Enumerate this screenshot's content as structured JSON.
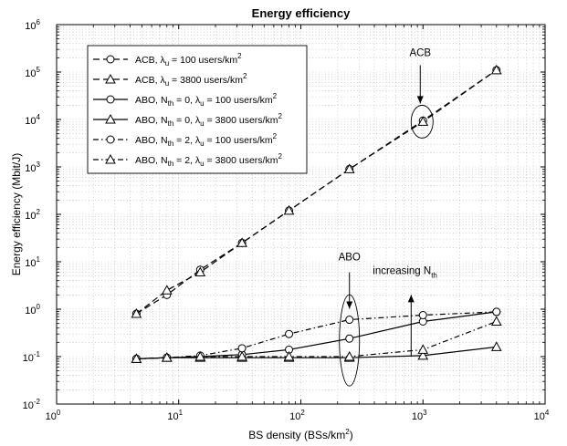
{
  "chart_data": {
    "type": "line",
    "title": "Energy efficiency",
    "xlabel": "BS density (BSs/km",
    "xlabel_sup": "2",
    "xlabel_end": ")",
    "ylabel": "Energy efficiency (Mbit/J)",
    "xscale": "log",
    "yscale": "log",
    "xlim": [
      1,
      10000
    ],
    "ylim": [
      0.01,
      1000000
    ],
    "grid": true,
    "legend_position": "top-left",
    "x_ticks": [
      1,
      10,
      100,
      1000,
      10000
    ],
    "x_tick_labels": [
      {
        "base": "10",
        "exp": "0"
      },
      {
        "base": "10",
        "exp": "1"
      },
      {
        "base": "10",
        "exp": "2"
      },
      {
        "base": "10",
        "exp": "3"
      },
      {
        "base": "10",
        "exp": "4"
      }
    ],
    "y_ticks": [
      0.01,
      0.1,
      1,
      10,
      100,
      1000,
      10000,
      100000,
      1000000
    ],
    "y_tick_labels": [
      {
        "base": "10",
        "exp": "-2"
      },
      {
        "base": "10",
        "exp": "-1"
      },
      {
        "base": "10",
        "exp": "0"
      },
      {
        "base": "10",
        "exp": "1"
      },
      {
        "base": "10",
        "exp": "2"
      },
      {
        "base": "10",
        "exp": "3"
      },
      {
        "base": "10",
        "exp": "4"
      },
      {
        "base": "10",
        "exp": "5"
      },
      {
        "base": "10",
        "exp": "6"
      }
    ],
    "series": [
      {
        "label": "ACB, λu = 100 users/km2",
        "legend": {
          "pre": "ACB, ",
          "sym": "λ",
          "sub": "u",
          "mid": " = 100 users/km",
          "sup": "2"
        },
        "marker": "circle",
        "dash": "long",
        "color": "#000000",
        "x": [
          4.5,
          8,
          15,
          33,
          80,
          250,
          1000,
          4000
        ],
        "y": [
          0.8,
          2,
          6.8,
          25,
          120,
          900,
          9500,
          110000
        ]
      },
      {
        "label": "ACB, λu = 3800 users/km2",
        "legend": {
          "pre": "ACB, ",
          "sym": "λ",
          "sub": "u",
          "mid": " = 3800 users/km",
          "sup": "2"
        },
        "marker": "triangle",
        "dash": "long",
        "color": "#000000",
        "x": [
          4.5,
          8,
          15,
          33,
          80,
          250,
          1000,
          4000
        ],
        "y": [
          0.8,
          2.5,
          6,
          25,
          120,
          900,
          9000,
          110000
        ]
      },
      {
        "label": "ABO, Nth = 0, λu = 100 users/km2",
        "legend": {
          "pre": "ABO, N",
          "sub0": "th",
          "pre2": " = 0, ",
          "sym": "λ",
          "sub": "u",
          "mid": " = 100 users/km",
          "sup": "2"
        },
        "marker": "circle",
        "dash": "solid",
        "color": "#000000",
        "x": [
          4.5,
          8,
          15,
          33,
          80,
          250,
          1000,
          4000
        ],
        "y": [
          0.09,
          0.095,
          0.1,
          0.11,
          0.14,
          0.24,
          0.55,
          0.88
        ]
      },
      {
        "label": "ABO, Nth = 0, λu = 3800 users/km2",
        "legend": {
          "pre": "ABO, N",
          "sub0": "th",
          "pre2": " = 0, ",
          "sym": "λ",
          "sub": "u",
          "mid": " = 3800 users/km",
          "sup": "2"
        },
        "marker": "triangle",
        "dash": "solid",
        "color": "#000000",
        "x": [
          4.5,
          8,
          15,
          33,
          80,
          250,
          1000,
          4000
        ],
        "y": [
          0.09,
          0.095,
          0.095,
          0.095,
          0.095,
          0.095,
          0.105,
          0.16
        ]
      },
      {
        "label": "ABO, Nth = 2, λu = 100 users/km2",
        "legend": {
          "pre": "ABO, N",
          "sub0": "th",
          "pre2": " = 2, ",
          "sym": "λ",
          "sub": "u",
          "mid": " = 100 users/km",
          "sup": "2"
        },
        "marker": "circle",
        "dash": "dashdot",
        "color": "#000000",
        "x": [
          4.5,
          8,
          15,
          33,
          80,
          250,
          1000,
          4000
        ],
        "y": [
          0.09,
          0.095,
          0.105,
          0.15,
          0.3,
          0.6,
          0.75,
          0.88
        ]
      },
      {
        "label": "ABO, Nth = 2, λu = 3800 users/km2",
        "legend": {
          "pre": "ABO, N",
          "sub0": "th",
          "pre2": " = 2, ",
          "sym": "λ",
          "sub": "u",
          "mid": " = 3800 users/km",
          "sup": "2"
        },
        "marker": "triangle",
        "dash": "dashdot",
        "color": "#000000",
        "x": [
          4.5,
          8,
          15,
          33,
          80,
          250,
          1000,
          4000
        ],
        "y": [
          0.09,
          0.095,
          0.1,
          0.1,
          0.1,
          0.1,
          0.14,
          0.55
        ]
      }
    ],
    "annotations": [
      {
        "text": "ACB",
        "arrow_to": [
          950,
          9000
        ]
      },
      {
        "text": "ABO",
        "arrow_to": [
          250,
          0.6
        ]
      },
      {
        "text_base": "increasing N",
        "text_sub": "th",
        "arrow_from": [
          800,
          0.1
        ],
        "arrow_to": [
          800,
          2
        ]
      }
    ]
  }
}
